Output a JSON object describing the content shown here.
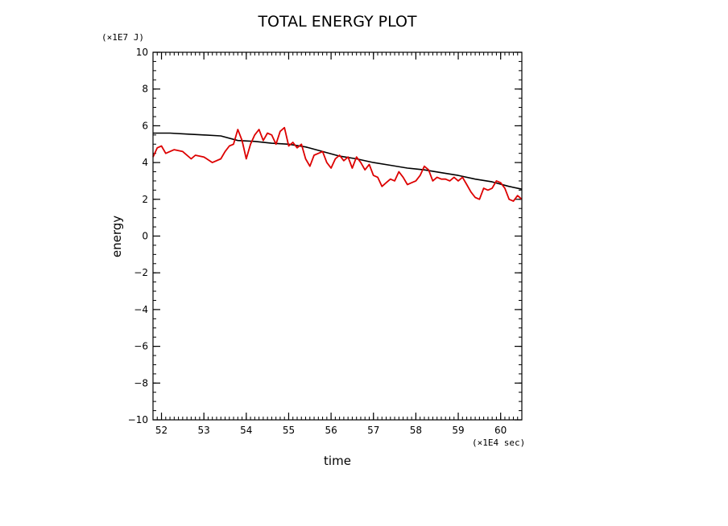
{
  "chart_data": {
    "type": "line",
    "title": "TOTAL ENERGY PLOT",
    "xlabel": "time",
    "ylabel": "energy",
    "x_unit": "(×1E4 sec)",
    "y_unit": "(×1E7 J)",
    "xlim": [
      51.8,
      60.5
    ],
    "ylim": [
      -10,
      10
    ],
    "x_ticks": [
      52,
      53,
      54,
      55,
      56,
      57,
      58,
      59,
      60
    ],
    "y_ticks": [
      10,
      8,
      6,
      4,
      2,
      0,
      -2,
      -4,
      -6,
      -8,
      -10
    ],
    "x_tick_labels": [
      "52",
      "53",
      "54",
      "55",
      "56",
      "57",
      "58",
      "59",
      "60"
    ],
    "y_tick_labels": [
      "10",
      "8",
      "6",
      "4",
      "2",
      "0",
      "−2",
      "−4",
      "−6",
      "−8",
      "−10"
    ],
    "grid": false,
    "series": [
      {
        "color": "#000000",
        "x": [
          51.8,
          52.2,
          52.6,
          53.0,
          53.4,
          53.8,
          54.2,
          54.6,
          55.0,
          55.4,
          55.8,
          56.2,
          56.6,
          57.0,
          57.4,
          57.8,
          58.2,
          58.6,
          59.0,
          59.4,
          59.8,
          60.2,
          60.5
        ],
        "y": [
          5.6,
          5.6,
          5.55,
          5.5,
          5.45,
          5.2,
          5.15,
          5.05,
          5.0,
          4.85,
          4.6,
          4.35,
          4.2,
          4.0,
          3.85,
          3.7,
          3.6,
          3.45,
          3.3,
          3.1,
          2.95,
          2.7,
          2.55
        ]
      },
      {
        "color": "#dd0000",
        "x": [
          51.8,
          51.9,
          52.0,
          52.1,
          52.3,
          52.5,
          52.7,
          52.8,
          53.0,
          53.2,
          53.4,
          53.5,
          53.6,
          53.7,
          53.8,
          53.9,
          54.0,
          54.1,
          54.2,
          54.3,
          54.4,
          54.5,
          54.6,
          54.7,
          54.8,
          54.9,
          55.0,
          55.1,
          55.2,
          55.3,
          55.4,
          55.5,
          55.6,
          55.7,
          55.8,
          55.9,
          56.0,
          56.1,
          56.2,
          56.3,
          56.4,
          56.5,
          56.6,
          56.7,
          56.8,
          56.9,
          57.0,
          57.1,
          57.2,
          57.3,
          57.4,
          57.5,
          57.6,
          57.7,
          57.8,
          57.9,
          58.0,
          58.1,
          58.2,
          58.3,
          58.4,
          58.5,
          58.6,
          58.7,
          58.8,
          58.9,
          59.0,
          59.1,
          59.2,
          59.3,
          59.4,
          59.5,
          59.6,
          59.7,
          59.8,
          59.9,
          60.0,
          60.1,
          60.2,
          60.3,
          60.4,
          60.5
        ],
        "y": [
          4.3,
          4.8,
          4.9,
          4.5,
          4.7,
          4.6,
          4.2,
          4.4,
          4.3,
          4.0,
          4.2,
          4.6,
          4.9,
          5.0,
          5.8,
          5.2,
          4.2,
          5.0,
          5.5,
          5.8,
          5.2,
          5.6,
          5.5,
          5.0,
          5.7,
          5.9,
          4.9,
          5.1,
          4.8,
          5.0,
          4.2,
          3.8,
          4.4,
          4.5,
          4.6,
          4.0,
          3.7,
          4.2,
          4.4,
          4.1,
          4.3,
          3.7,
          4.3,
          4.0,
          3.6,
          3.9,
          3.3,
          3.2,
          2.7,
          2.9,
          3.1,
          3.0,
          3.5,
          3.2,
          2.8,
          2.9,
          3.0,
          3.3,
          3.8,
          3.6,
          3.0,
          3.2,
          3.1,
          3.1,
          3.0,
          3.2,
          3.0,
          3.2,
          2.8,
          2.4,
          2.1,
          2.0,
          2.6,
          2.5,
          2.6,
          3.0,
          2.9,
          2.6,
          2.0,
          1.9,
          2.2,
          2.0
        ]
      }
    ]
  }
}
